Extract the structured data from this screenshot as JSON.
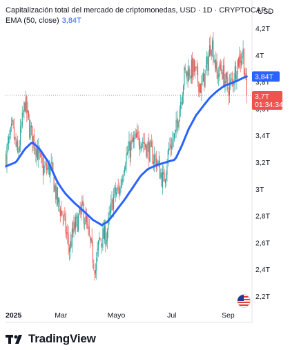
{
  "header": {
    "title": "Capitalización total del mercado de criptomonedas, USD · 1D · CRYPTOCAP...",
    "ema_label": "EMA (50, close)",
    "ema_value": "3,84T",
    "currency": "USD"
  },
  "price_tags": {
    "ema_tag": "3,84T",
    "last_tag": "3,7T",
    "countdown": "01:34:34"
  },
  "brand": {
    "name": "TradingView"
  },
  "colors": {
    "up": "#26a69a",
    "down": "#ef5350",
    "ema": "#2962ff",
    "last_tag": "#ef5350",
    "ema_tag": "#2962ff"
  },
  "icons": {
    "brand_logo": "tradingview-logo-icon",
    "flag": "us-flag-icon"
  },
  "chart_data": {
    "type": "candlestick",
    "title": "Capitalización total del mercado de criptomonedas, USD · 1D · CRYPTOCAP...",
    "y_unit": "USD (billones)",
    "y_ticks": [
      "4,2T",
      "4T",
      "3,8T",
      "3,6T",
      "3,4T",
      "3,2T",
      "3T",
      "2,8T",
      "2,6T",
      "2,4T",
      "2,2T"
    ],
    "y_tick_values": [
      4.2,
      4.0,
      3.8,
      3.6,
      3.4,
      3.2,
      3.0,
      2.8,
      2.6,
      2.4,
      2.2
    ],
    "ylim": [
      2.15,
      4.25
    ],
    "x_ticks": [
      "2025",
      "Mar",
      "Mayo",
      "Jul",
      "Sep"
    ],
    "x_tick_dates": [
      "2025-01-01",
      "2025-03-01",
      "2025-05-01",
      "2025-07-01",
      "2025-09-01"
    ],
    "x_range": [
      "2024-12-30",
      "2025-09-22"
    ],
    "last_price": 3.7,
    "current_ema": 3.84,
    "close_anchors": [
      [
        "2024-12-30",
        3.25
      ],
      [
        "2025-01-06",
        3.45
      ],
      [
        "2025-01-12",
        3.25
      ],
      [
        "2025-01-20",
        3.65
      ],
      [
        "2025-01-25",
        3.45
      ],
      [
        "2025-02-02",
        3.3
      ],
      [
        "2025-02-08",
        3.15
      ],
      [
        "2025-02-18",
        3.15
      ],
      [
        "2025-02-25",
        2.9
      ],
      [
        "2025-03-03",
        2.8
      ],
      [
        "2025-03-10",
        2.55
      ],
      [
        "2025-03-15",
        2.7
      ],
      [
        "2025-03-25",
        2.85
      ],
      [
        "2025-04-01",
        2.62
      ],
      [
        "2025-04-08",
        2.4
      ],
      [
        "2025-04-12",
        2.62
      ],
      [
        "2025-04-20",
        2.66
      ],
      [
        "2025-04-28",
        2.95
      ],
      [
        "2025-05-05",
        3.0
      ],
      [
        "2025-05-10",
        3.22
      ],
      [
        "2025-05-20",
        3.35
      ],
      [
        "2025-05-28",
        3.38
      ],
      [
        "2025-06-05",
        3.3
      ],
      [
        "2025-06-15",
        3.2
      ],
      [
        "2025-06-22",
        3.05
      ],
      [
        "2025-06-28",
        3.3
      ],
      [
        "2025-07-05",
        3.4
      ],
      [
        "2025-07-10",
        3.62
      ],
      [
        "2025-07-15",
        3.85
      ],
      [
        "2025-07-25",
        3.9
      ],
      [
        "2025-08-03",
        3.75
      ],
      [
        "2025-08-10",
        3.95
      ],
      [
        "2025-08-14",
        4.12
      ],
      [
        "2025-08-20",
        3.85
      ],
      [
        "2025-08-25",
        3.9
      ],
      [
        "2025-09-01",
        3.75
      ],
      [
        "2025-09-06",
        3.8
      ],
      [
        "2025-09-12",
        3.95
      ],
      [
        "2025-09-18",
        4.02
      ],
      [
        "2025-09-22",
        3.7
      ]
    ],
    "ema_anchors": [
      [
        "2024-12-30",
        3.17
      ],
      [
        "2025-01-10",
        3.2
      ],
      [
        "2025-01-20",
        3.3
      ],
      [
        "2025-01-28",
        3.35
      ],
      [
        "2025-02-05",
        3.3
      ],
      [
        "2025-02-15",
        3.2
      ],
      [
        "2025-02-25",
        3.05
      ],
      [
        "2025-03-05",
        2.97
      ],
      [
        "2025-03-15",
        2.9
      ],
      [
        "2025-03-25",
        2.84
      ],
      [
        "2025-04-05",
        2.77
      ],
      [
        "2025-04-15",
        2.73
      ],
      [
        "2025-04-22",
        2.76
      ],
      [
        "2025-05-01",
        2.84
      ],
      [
        "2025-05-10",
        2.92
      ],
      [
        "2025-05-20",
        3.02
      ],
      [
        "2025-05-28",
        3.1
      ],
      [
        "2025-06-05",
        3.15
      ],
      [
        "2025-06-15",
        3.18
      ],
      [
        "2025-06-25",
        3.2
      ],
      [
        "2025-07-05",
        3.22
      ],
      [
        "2025-07-12",
        3.32
      ],
      [
        "2025-07-20",
        3.45
      ],
      [
        "2025-07-28",
        3.55
      ],
      [
        "2025-08-05",
        3.62
      ],
      [
        "2025-08-12",
        3.68
      ],
      [
        "2025-08-20",
        3.73
      ],
      [
        "2025-08-28",
        3.77
      ],
      [
        "2025-09-05",
        3.79
      ],
      [
        "2025-09-12",
        3.81
      ],
      [
        "2025-09-18",
        3.83
      ],
      [
        "2025-09-22",
        3.84
      ]
    ]
  }
}
